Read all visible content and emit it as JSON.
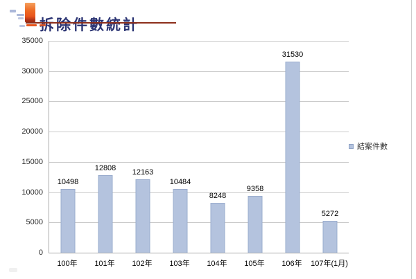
{
  "header": {
    "title": "拆除件數統計",
    "icon": "orange-stamp-bullet-icon"
  },
  "legend": {
    "label": "結案件數"
  },
  "colors": {
    "bar_fill": "#B4C3DE",
    "bar_border": "#9AACCD",
    "title_text": "#2B3473",
    "title_rule": "#8C2E1A",
    "icon_orange": "#E8551C",
    "gridline": "#C9C9C9",
    "axis": "#A8A8A8"
  },
  "chart_data": {
    "type": "bar",
    "title": "拆除件數統計",
    "categories": [
      "100年",
      "101年",
      "102年",
      "103年",
      "104年",
      "105年",
      "106年",
      "107年(1月)"
    ],
    "series": [
      {
        "name": "結案件數",
        "values": [
          10498,
          12808,
          12163,
          10484,
          8248,
          9358,
          31530,
          5272
        ]
      }
    ],
    "data_labels": true,
    "xlabel": "",
    "ylabel": "",
    "ylim": [
      0,
      35000
    ],
    "yticks": [
      0,
      5000,
      10000,
      15000,
      20000,
      25000,
      30000,
      35000
    ],
    "grid": true,
    "legend_position": "right"
  }
}
